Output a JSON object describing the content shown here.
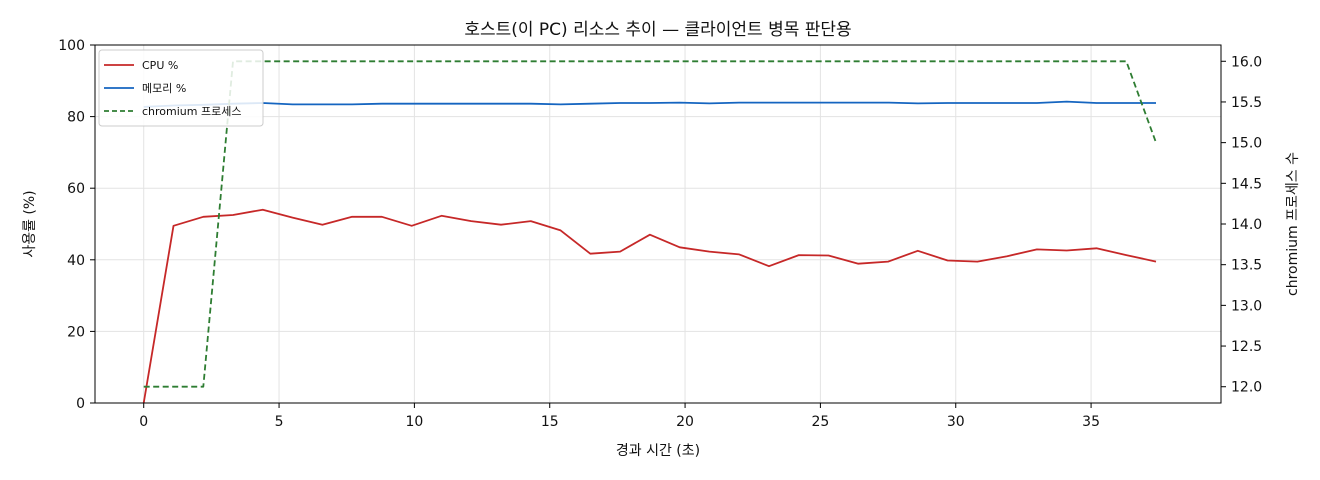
{
  "chart_data": {
    "type": "line",
    "title": "호스트(이 PC) 리소스 추이 — 클라이언트 병목 판단용",
    "xlabel": "경과 시간 (초)",
    "ylabel": "사용률 (%)",
    "y2label": "chromium 프로세스 수",
    "xlim": [
      -1.8,
      39.8
    ],
    "ylim": [
      0,
      100
    ],
    "y2lim": [
      11.8,
      16.2
    ],
    "xticks": [
      0,
      5,
      10,
      15,
      20,
      25,
      30,
      35
    ],
    "yticks": [
      0,
      20,
      40,
      60,
      80,
      100
    ],
    "y2ticks": [
      12.0,
      12.5,
      13.0,
      13.5,
      14.0,
      14.5,
      15.0,
      15.5,
      16.0
    ],
    "grid": true,
    "legend_position": "upper-left",
    "series": [
      {
        "name": "CPU %",
        "axis": "left",
        "color": "#c62828",
        "style": "solid",
        "x": [
          0,
          1.1,
          2.2,
          3.3,
          4.4,
          5.5,
          6.6,
          7.7,
          8.8,
          9.9,
          11.0,
          12.1,
          13.2,
          14.3,
          15.4,
          16.5,
          17.6,
          18.7,
          19.8,
          20.9,
          22.0,
          23.1,
          24.2,
          25.3,
          26.4,
          27.5,
          28.6,
          29.7,
          30.8,
          31.9,
          33.0,
          34.1,
          35.2,
          36.3,
          37.4
        ],
        "y": [
          0,
          49.5,
          52.0,
          52.5,
          54.0,
          51.8,
          49.8,
          52.0,
          52.0,
          49.5,
          52.3,
          50.8,
          49.8,
          50.8,
          48.2,
          41.7,
          42.3,
          47.0,
          43.5,
          42.3,
          41.5,
          38.2,
          41.3,
          41.2,
          38.9,
          39.5,
          42.5,
          39.8,
          39.5,
          41.0,
          42.9,
          42.6,
          43.2,
          41.3,
          39.5
        ]
      },
      {
        "name": "메모리 %",
        "axis": "left",
        "color": "#1565c0",
        "style": "solid",
        "x": [
          0,
          1.1,
          2.2,
          3.3,
          4.4,
          5.5,
          6.6,
          7.7,
          8.8,
          9.9,
          11.0,
          12.1,
          13.2,
          14.3,
          15.4,
          16.5,
          17.6,
          18.7,
          19.8,
          20.9,
          22.0,
          23.1,
          24.2,
          25.3,
          26.4,
          27.5,
          28.6,
          29.7,
          30.8,
          31.9,
          33.0,
          34.1,
          35.2,
          36.3,
          37.4
        ],
        "y": [
          82.7,
          83.1,
          83.3,
          83.6,
          83.8,
          83.4,
          83.4,
          83.4,
          83.6,
          83.6,
          83.6,
          83.6,
          83.6,
          83.6,
          83.4,
          83.6,
          83.8,
          83.8,
          83.9,
          83.7,
          83.9,
          83.9,
          83.9,
          83.9,
          83.9,
          83.9,
          83.7,
          83.8,
          83.8,
          83.8,
          83.8,
          84.2,
          83.8,
          83.8,
          83.8
        ]
      },
      {
        "name": "chromium 프로세스",
        "axis": "right",
        "color": "#2e7d32",
        "style": "dashed",
        "x": [
          0,
          1.1,
          2.2,
          3.3,
          4.4,
          5.5,
          6.6,
          7.7,
          8.8,
          9.9,
          11.0,
          12.1,
          13.2,
          14.3,
          15.4,
          16.5,
          17.6,
          18.7,
          19.8,
          20.9,
          22.0,
          23.1,
          24.2,
          25.3,
          26.4,
          27.5,
          28.6,
          29.7,
          30.8,
          31.9,
          33.0,
          34.1,
          35.2,
          36.3,
          37.4
        ],
        "y": [
          12,
          12,
          12,
          16,
          16,
          16,
          16,
          16,
          16,
          16,
          16,
          16,
          16,
          16,
          16,
          16,
          16,
          16,
          16,
          16,
          16,
          16,
          16,
          16,
          16,
          16,
          16,
          16,
          16,
          16,
          16,
          16,
          16,
          16,
          15
        ]
      }
    ]
  }
}
